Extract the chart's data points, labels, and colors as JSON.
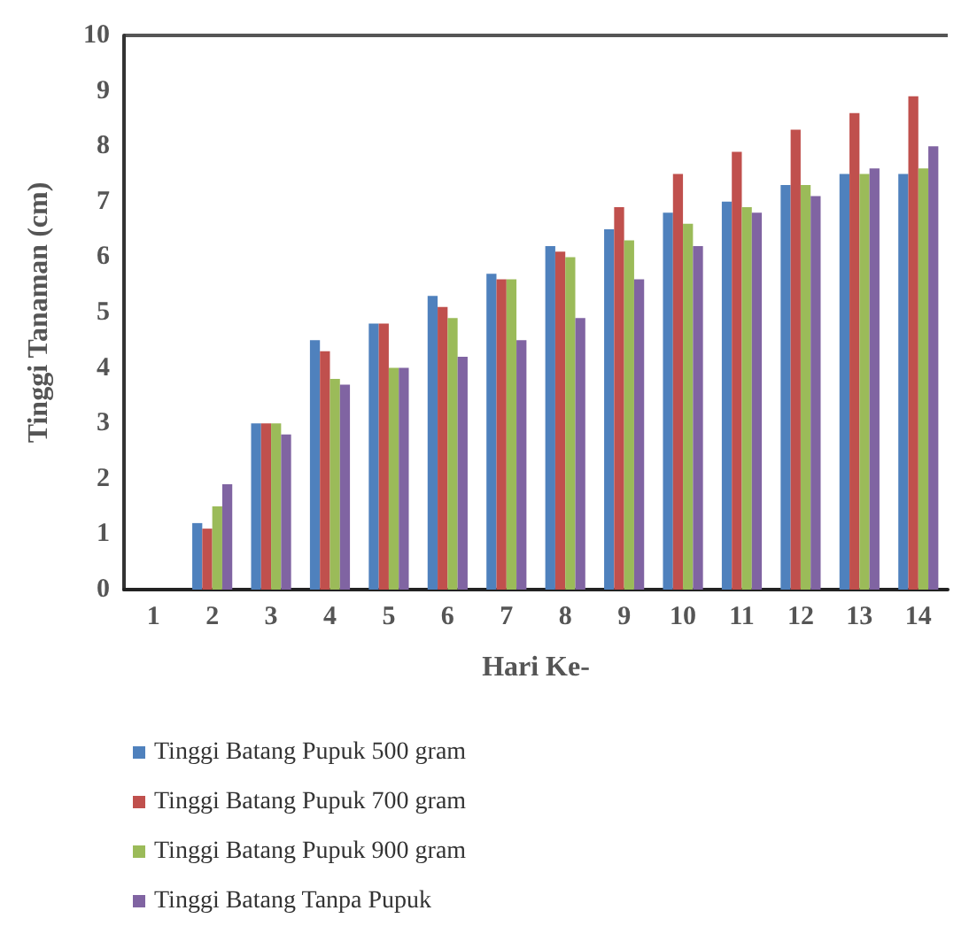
{
  "chart_data": {
    "type": "bar",
    "xlabel": "Hari Ke-",
    "ylabel": "Tinggi Tanaman (cm)",
    "categories": [
      "1",
      "2",
      "3",
      "4",
      "5",
      "6",
      "7",
      "8",
      "9",
      "10",
      "11",
      "12",
      "13",
      "14"
    ],
    "series": [
      {
        "name": "Tinggi Batang Pupuk 500 gram",
        "color": "#4f81bd",
        "values": [
          0,
          1.2,
          3,
          4.5,
          4.8,
          5.3,
          5.7,
          6.2,
          6.5,
          6.8,
          7.0,
          7.3,
          7.5,
          7.5
        ]
      },
      {
        "name": "Tinggi Batang Pupuk 700 gram",
        "color": "#c0504d",
        "values": [
          0,
          1.1,
          3,
          4.3,
          4.8,
          5.1,
          5.6,
          6.1,
          6.9,
          7.5,
          7.9,
          8.3,
          8.6,
          8.9
        ]
      },
      {
        "name": "Tinggi Batang Pupuk 900 gram",
        "color": "#9bbb59",
        "values": [
          0,
          1.5,
          3,
          3.8,
          4.0,
          4.9,
          5.6,
          6.0,
          6.3,
          6.6,
          6.9,
          7.3,
          7.5,
          7.6
        ]
      },
      {
        "name": "Tinggi Batang Tanpa Pupuk",
        "color": "#8064a2",
        "values": [
          0,
          1.9,
          2.8,
          3.7,
          4.0,
          4.2,
          4.5,
          4.9,
          5.6,
          6.2,
          6.8,
          7.1,
          7.6,
          8.0
        ]
      }
    ],
    "ylim": [
      0,
      10
    ],
    "yticks": [
      0,
      1,
      2,
      3,
      4,
      5,
      6,
      7,
      8,
      9,
      10
    ],
    "grid": false,
    "legend": "bottom"
  }
}
